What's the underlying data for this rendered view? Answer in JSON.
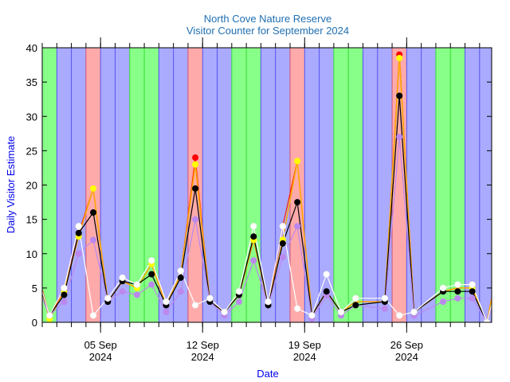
{
  "chart_data": {
    "type": "line",
    "title": "North Cove Nature Reserve",
    "subtitle": "Visitor Counter for September 2024",
    "xlabel": "Date",
    "ylabel": "Daily Visitor Estimate",
    "ylim": [
      0,
      40
    ],
    "xlim": [
      "2024-09-01",
      "2024-10-01"
    ],
    "yticks": [
      0,
      5,
      10,
      15,
      20,
      25,
      30,
      35,
      40
    ],
    "xticks": [
      {
        "day": 5,
        "label_line1": "05 Sep",
        "label_line2": "2024"
      },
      {
        "day": 12,
        "label_line1": "12 Sep",
        "label_line2": "2024"
      },
      {
        "day": 19,
        "label_line1": "19 Sep",
        "label_line2": "2024"
      },
      {
        "day": 26,
        "label_line1": "26 Sep",
        "label_line2": "2024"
      }
    ],
    "grid": false,
    "legend": "none",
    "band_colors": {
      "green": "#88ff88",
      "blue": "#aaaaff",
      "red": "#ffaaaa"
    },
    "band_line_colors": {
      "green": "#33dd33",
      "blue": "#5555ee",
      "red": "#cc5577"
    },
    "day_bands": [
      "green",
      "blue",
      "blue",
      "red",
      "blue",
      "blue",
      "green",
      "green",
      "blue",
      "blue",
      "red",
      "blue",
      "blue",
      "green",
      "green",
      "blue",
      "blue",
      "red",
      "blue",
      "blue",
      "green",
      "green",
      "blue",
      "blue",
      "red",
      "blue",
      "blue",
      "green",
      "green",
      "blue"
    ],
    "x": [
      0,
      1,
      2,
      3,
      4,
      5,
      6,
      7,
      8,
      9,
      10,
      11,
      12,
      13,
      14,
      15,
      16,
      17,
      18,
      19,
      20,
      21,
      22,
      24,
      25,
      26,
      28,
      29,
      30,
      31,
      32
    ],
    "series": [
      {
        "name": "Red",
        "color": "#ff0000",
        "line_color": "#ff2200",
        "show_markers_on": [
          11,
          25
        ],
        "values": [
          8.5,
          1,
          4.5,
          13,
          19.5,
          3,
          6,
          5,
          8.5,
          2.5,
          7,
          24,
          3,
          1.5,
          4,
          12,
          2.5,
          14,
          23.5,
          1,
          4.5,
          1.5,
          3,
          3,
          39,
          1.5,
          4.5,
          5,
          5,
          0,
          11
        ]
      },
      {
        "name": "Yellow",
        "color": "#ffff00",
        "line_color": "#ffaa00",
        "show_markers_on": [
          1,
          2,
          3,
          4,
          6,
          7,
          8,
          11,
          15,
          17,
          18,
          25,
          30
        ],
        "values": [
          8,
          0.5,
          4.5,
          12.5,
          19.5,
          3,
          6,
          5,
          8.5,
          2.5,
          7,
          23,
          3,
          1.5,
          4,
          12,
          2.5,
          12,
          23.5,
          1,
          4.5,
          1.5,
          3,
          3,
          38.5,
          1.5,
          4.5,
          5,
          5,
          0,
          10.5
        ]
      },
      {
        "name": "Black",
        "color": "#000000",
        "line_color": "#000000",
        "show_markers_on": "all",
        "values": [
          7.5,
          1,
          4,
          13,
          16,
          3,
          6,
          5.5,
          7,
          2.5,
          6.5,
          19.5,
          3,
          1.5,
          4,
          12.5,
          2.5,
          11.5,
          17.5,
          1,
          4.5,
          1.5,
          2.5,
          3,
          33,
          1.5,
          4.5,
          4.5,
          4.5,
          0,
          8
        ]
      },
      {
        "name": "Purple",
        "color": "#bb88ee",
        "line_color": "#bb88ee",
        "show_markers_on": "all",
        "values": [
          6,
          1,
          3,
          10,
          12,
          3,
          4.5,
          4,
          5.5,
          1.5,
          4.5,
          15,
          3,
          1,
          3,
          9,
          2.5,
          9.5,
          14,
          0.5,
          4,
          1,
          2.5,
          2,
          27,
          1,
          3,
          3.5,
          3.5,
          0,
          6
        ]
      },
      {
        "name": "White",
        "color": "#ffffff",
        "line_color": "#ffffff",
        "show_markers_on": "all",
        "values": [
          8,
          1,
          5,
          14,
          1,
          3.5,
          6.5,
          5.5,
          9,
          3,
          7.5,
          2.5,
          3.5,
          1.5,
          4.5,
          14,
          3,
          14,
          2,
          1,
          7,
          1.5,
          3.5,
          3.5,
          1,
          1.5,
          5,
          5.5,
          5.5,
          0,
          8
        ]
      }
    ]
  }
}
